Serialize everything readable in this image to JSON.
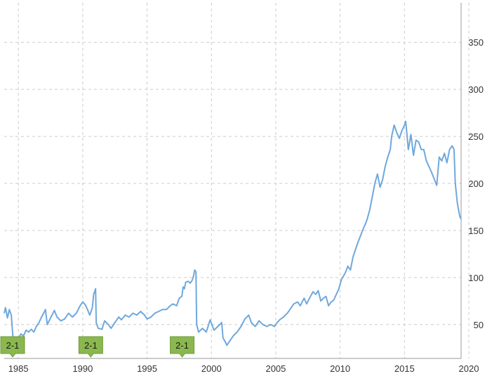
{
  "chart_data": {
    "type": "line",
    "title": "",
    "xlabel": "",
    "ylabel": "",
    "x_ticks": [
      "1985",
      "1990",
      "1995",
      "2000",
      "2005",
      "2010",
      "2015",
      "2020"
    ],
    "y_ticks": [
      "50",
      "100",
      "150",
      "200",
      "250",
      "300",
      "350"
    ],
    "xlim": [
      1983.9,
      2019.4
    ],
    "ylim": [
      14,
      392
    ],
    "grid": true,
    "y_axis_side": "right",
    "line_color": "#6fa8dc",
    "flag_color": "#8ab84f",
    "annotations": [
      {
        "label": "2-1",
        "x": 1984.0
      },
      {
        "label": "2-1",
        "x": 1990.3
      },
      {
        "label": "2-1",
        "x": 1997.4
      }
    ],
    "series": [
      {
        "values": [
          [
            1983.9,
            62
          ],
          [
            1984.0,
            68
          ],
          [
            1984.15,
            57
          ],
          [
            1984.3,
            66
          ],
          [
            1984.45,
            60
          ],
          [
            1984.6,
            33
          ],
          [
            1984.8,
            31
          ],
          [
            1985.0,
            35
          ],
          [
            1985.2,
            40
          ],
          [
            1985.4,
            38
          ],
          [
            1985.6,
            44
          ],
          [
            1985.8,
            42
          ],
          [
            1986.0,
            45
          ],
          [
            1986.2,
            42
          ],
          [
            1986.4,
            48
          ],
          [
            1986.6,
            52
          ],
          [
            1986.8,
            58
          ],
          [
            1987.0,
            63
          ],
          [
            1987.1,
            66
          ],
          [
            1987.25,
            50
          ],
          [
            1987.5,
            57
          ],
          [
            1987.8,
            65
          ],
          [
            1988.0,
            58
          ],
          [
            1988.3,
            54
          ],
          [
            1988.6,
            56
          ],
          [
            1988.9,
            62
          ],
          [
            1989.2,
            58
          ],
          [
            1989.5,
            62
          ],
          [
            1989.8,
            70
          ],
          [
            1990.0,
            74
          ],
          [
            1990.2,
            71
          ],
          [
            1990.4,
            65
          ],
          [
            1990.55,
            60
          ],
          [
            1990.75,
            68
          ],
          [
            1990.85,
            82
          ],
          [
            1991.0,
            88
          ],
          [
            1991.05,
            52
          ],
          [
            1991.2,
            46
          ],
          [
            1991.5,
            45
          ],
          [
            1991.7,
            54
          ],
          [
            1992.0,
            50
          ],
          [
            1992.2,
            46
          ],
          [
            1992.5,
            52
          ],
          [
            1992.8,
            58
          ],
          [
            1993.0,
            55
          ],
          [
            1993.3,
            60
          ],
          [
            1993.6,
            58
          ],
          [
            1993.9,
            62
          ],
          [
            1994.2,
            60
          ],
          [
            1994.5,
            64
          ],
          [
            1994.8,
            60
          ],
          [
            1995.0,
            56
          ],
          [
            1995.3,
            58
          ],
          [
            1995.6,
            62
          ],
          [
            1995.9,
            64
          ],
          [
            1996.2,
            66
          ],
          [
            1996.5,
            66
          ],
          [
            1996.8,
            70
          ],
          [
            1997.0,
            72
          ],
          [
            1997.3,
            70
          ],
          [
            1997.5,
            78
          ],
          [
            1997.7,
            80
          ],
          [
            1997.8,
            90
          ],
          [
            1997.9,
            88
          ],
          [
            1998.0,
            95
          ],
          [
            1998.2,
            96
          ],
          [
            1998.35,
            94
          ],
          [
            1998.5,
            97
          ],
          [
            1998.6,
            101
          ],
          [
            1998.7,
            108
          ],
          [
            1998.8,
            106
          ],
          [
            1998.85,
            50
          ],
          [
            1999.0,
            42
          ],
          [
            1999.3,
            46
          ],
          [
            1999.6,
            42
          ],
          [
            1999.9,
            55
          ],
          [
            2000.2,
            44
          ],
          [
            2000.5,
            48
          ],
          [
            2000.8,
            52
          ],
          [
            2000.9,
            36
          ],
          [
            2001.1,
            31
          ],
          [
            2001.2,
            28
          ],
          [
            2001.5,
            34
          ],
          [
            2001.7,
            38
          ],
          [
            2002.0,
            42
          ],
          [
            2002.3,
            48
          ],
          [
            2002.6,
            56
          ],
          [
            2002.9,
            60
          ],
          [
            2003.1,
            52
          ],
          [
            2003.4,
            48
          ],
          [
            2003.7,
            54
          ],
          [
            2004.0,
            50
          ],
          [
            2004.3,
            48
          ],
          [
            2004.6,
            50
          ],
          [
            2004.9,
            48
          ],
          [
            2005.1,
            52
          ],
          [
            2005.3,
            55
          ],
          [
            2005.6,
            58
          ],
          [
            2005.9,
            62
          ],
          [
            2006.1,
            66
          ],
          [
            2006.4,
            72
          ],
          [
            2006.7,
            74
          ],
          [
            2006.9,
            70
          ],
          [
            2007.2,
            78
          ],
          [
            2007.4,
            72
          ],
          [
            2007.7,
            80
          ],
          [
            2007.9,
            85
          ],
          [
            2008.1,
            82
          ],
          [
            2008.3,
            86
          ],
          [
            2008.5,
            75
          ],
          [
            2008.7,
            78
          ],
          [
            2008.9,
            80
          ],
          [
            2009.1,
            70
          ],
          [
            2009.3,
            74
          ],
          [
            2009.5,
            76
          ],
          [
            2009.7,
            82
          ],
          [
            2009.9,
            88
          ],
          [
            2010.1,
            98
          ],
          [
            2010.4,
            105
          ],
          [
            2010.6,
            112
          ],
          [
            2010.8,
            108
          ],
          [
            2011.0,
            122
          ],
          [
            2011.2,
            130
          ],
          [
            2011.4,
            138
          ],
          [
            2011.6,
            145
          ],
          [
            2011.8,
            152
          ],
          [
            2012.0,
            158
          ],
          [
            2012.1,
            162
          ],
          [
            2012.3,
            172
          ],
          [
            2012.5,
            186
          ],
          [
            2012.7,
            200
          ],
          [
            2012.9,
            210
          ],
          [
            2013.1,
            196
          ],
          [
            2013.3,
            204
          ],
          [
            2013.5,
            218
          ],
          [
            2013.7,
            228
          ],
          [
            2013.9,
            236
          ],
          [
            2014.0,
            250
          ],
          [
            2014.2,
            262
          ],
          [
            2014.4,
            254
          ],
          [
            2014.6,
            248
          ],
          [
            2014.8,
            256
          ],
          [
            2015.0,
            262
          ],
          [
            2015.1,
            266
          ],
          [
            2015.3,
            236
          ],
          [
            2015.5,
            252
          ],
          [
            2015.7,
            230
          ],
          [
            2015.9,
            246
          ],
          [
            2016.1,
            244
          ],
          [
            2016.3,
            236
          ],
          [
            2016.5,
            236
          ],
          [
            2016.7,
            224
          ],
          [
            2016.9,
            218
          ],
          [
            2017.1,
            212
          ],
          [
            2017.3,
            205
          ],
          [
            2017.5,
            198
          ],
          [
            2017.7,
            228
          ],
          [
            2017.9,
            224
          ],
          [
            2018.1,
            232
          ],
          [
            2018.3,
            222
          ],
          [
            2018.5,
            236
          ],
          [
            2018.7,
            240
          ],
          [
            2018.85,
            236
          ],
          [
            2018.95,
            200
          ],
          [
            2019.1,
            180
          ],
          [
            2019.2,
            172
          ],
          [
            2019.3,
            165
          ],
          [
            2019.4,
            162
          ]
        ]
      }
    ]
  }
}
